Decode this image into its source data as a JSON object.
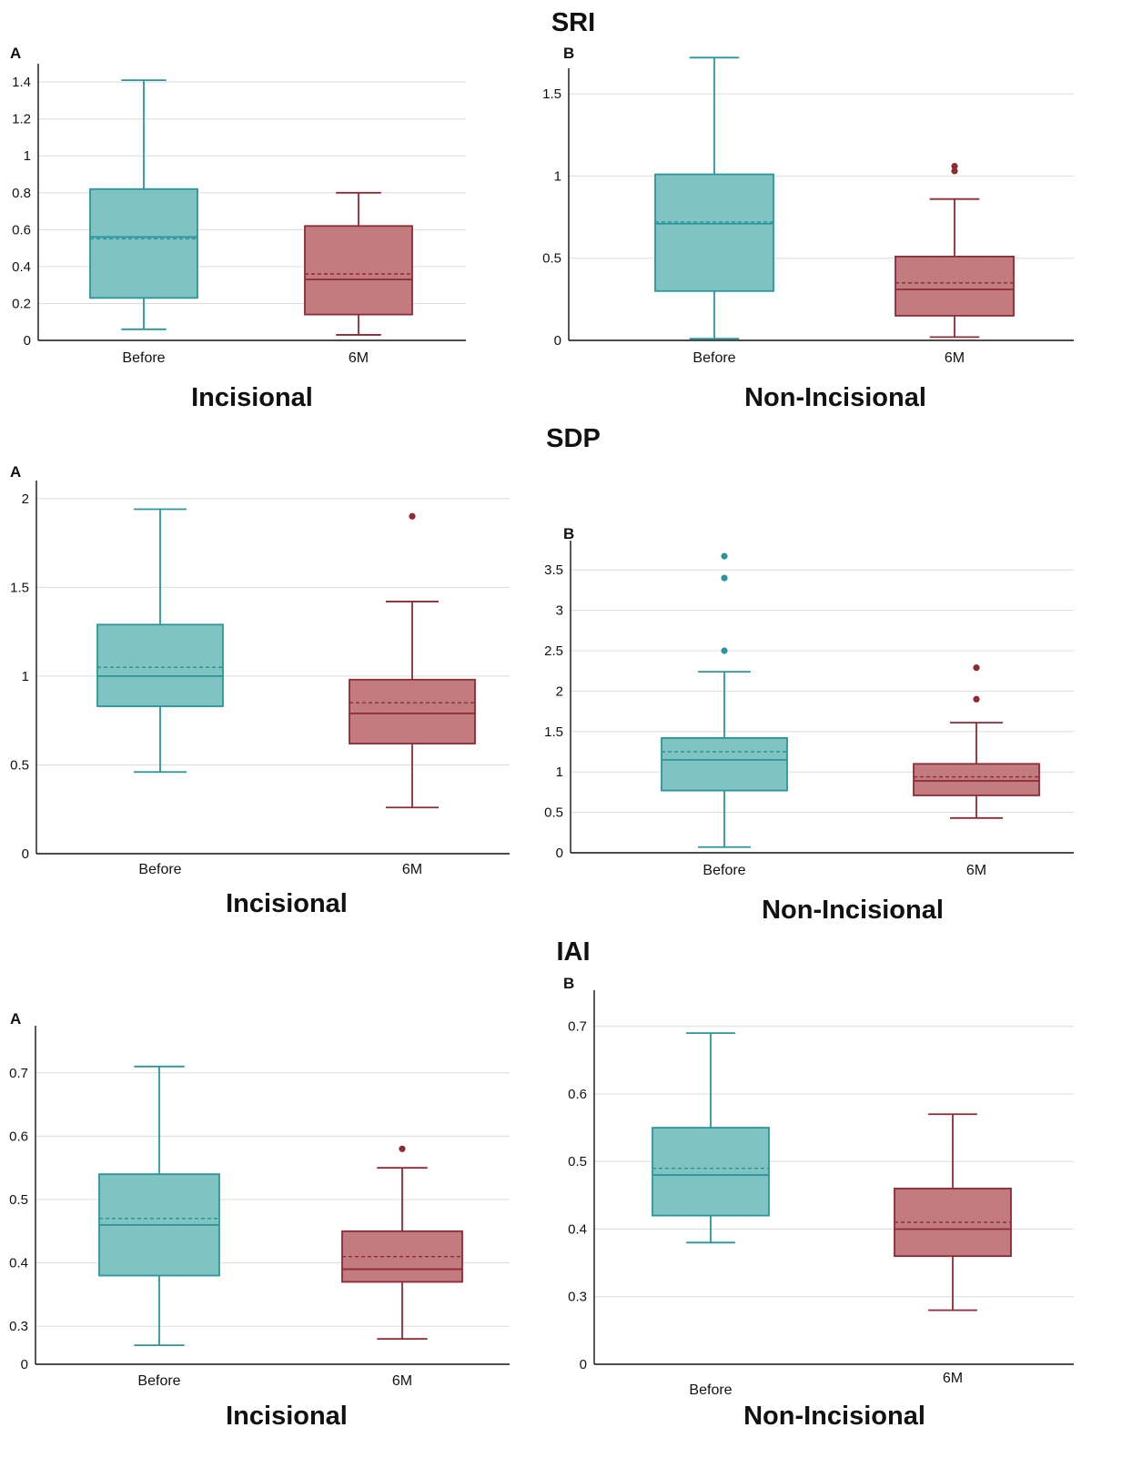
{
  "colors": {
    "before_fill": "#7fc3c3",
    "before_stroke": "#2b9599",
    "after_fill": "#c27b7f",
    "after_stroke": "#8e2a34",
    "grid": "#dcdcdc",
    "axis": "#111111"
  },
  "groups": [
    {
      "title": "SRI"
    },
    {
      "title": "SDP"
    },
    {
      "title": "IAI"
    }
  ],
  "chart_data": [
    {
      "type": "box",
      "group": "SRI",
      "panel": "A",
      "xlabel": "Incisional",
      "categories": [
        "Before",
        "6M"
      ],
      "ylim": [
        0,
        1.45
      ],
      "yticks": [
        0,
        0.2,
        0.4,
        0.6,
        0.8,
        1,
        1.2,
        1.4
      ],
      "ytick_labels": [
        "0",
        "0.2",
        "0.4",
        "0.6",
        "0.8",
        "1",
        "1.2",
        "1.4"
      ],
      "grid": true,
      "boxes": [
        {
          "category": "Before",
          "whisker_low": 0.06,
          "q1": 0.23,
          "median": 0.56,
          "mean": 0.55,
          "q3": 0.82,
          "whisker_high": 1.41,
          "outliers": []
        },
        {
          "category": "6M",
          "whisker_low": 0.03,
          "q1": 0.14,
          "median": 0.33,
          "mean": 0.36,
          "q3": 0.62,
          "whisker_high": 0.8,
          "outliers": []
        }
      ]
    },
    {
      "type": "box",
      "group": "SRI",
      "panel": "B",
      "xlabel": "Non-Incisional",
      "categories": [
        "Before",
        "6M"
      ],
      "ylim": [
        0,
        1.6
      ],
      "yticks": [
        0,
        0.5,
        1,
        1.5
      ],
      "ytick_labels": [
        "0",
        "0.5",
        "1",
        "1.5"
      ],
      "grid": true,
      "boxes": [
        {
          "category": "Before",
          "whisker_low": 0.01,
          "q1": 0.3,
          "median": 0.71,
          "mean": 0.72,
          "q3": 1.01,
          "whisker_high": 1.72,
          "outliers": []
        },
        {
          "category": "6M",
          "whisker_low": 0.02,
          "q1": 0.15,
          "median": 0.31,
          "mean": 0.35,
          "q3": 0.51,
          "whisker_high": 0.86,
          "outliers": [
            1.03,
            1.06
          ]
        }
      ]
    },
    {
      "type": "box",
      "group": "SDP",
      "panel": "A",
      "xlabel": "Incisional",
      "categories": [
        "Before",
        "6M"
      ],
      "ylim": [
        0,
        2.05
      ],
      "yticks": [
        0,
        0.5,
        1,
        1.5,
        2
      ],
      "ytick_labels": [
        "0",
        "0.5",
        "1",
        "1.5",
        "2"
      ],
      "grid": true,
      "boxes": [
        {
          "category": "Before",
          "whisker_low": 0.46,
          "q1": 0.83,
          "median": 1.0,
          "mean": 1.05,
          "q3": 1.29,
          "whisker_high": 1.94,
          "outliers": []
        },
        {
          "category": "6M",
          "whisker_low": 0.26,
          "q1": 0.62,
          "median": 0.79,
          "mean": 0.85,
          "q3": 0.98,
          "whisker_high": 1.42,
          "outliers": [
            1.9
          ]
        }
      ]
    },
    {
      "type": "box",
      "group": "SDP",
      "panel": "B",
      "xlabel": "Non-Incisional",
      "categories": [
        "Before",
        "6M"
      ],
      "ylim": [
        0,
        3.75
      ],
      "yticks": [
        0,
        0.5,
        1,
        1.5,
        2,
        2.5,
        3,
        3.5
      ],
      "ytick_labels": [
        "0",
        "0.5",
        "1",
        "1.5",
        "2",
        "2.5",
        "3",
        "3.5"
      ],
      "grid": true,
      "boxes": [
        {
          "category": "Before",
          "whisker_low": 0.07,
          "q1": 0.77,
          "median": 1.15,
          "mean": 1.25,
          "q3": 1.42,
          "whisker_high": 2.24,
          "outliers": [
            2.5,
            3.4,
            3.67
          ]
        },
        {
          "category": "6M",
          "whisker_low": 0.43,
          "q1": 0.71,
          "median": 0.89,
          "mean": 0.94,
          "q3": 1.1,
          "whisker_high": 1.61,
          "outliers": [
            1.9,
            2.29
          ]
        }
      ]
    },
    {
      "type": "box",
      "group": "IAI",
      "panel": "A",
      "xlabel": "Incisional",
      "categories": [
        "Before",
        "6M"
      ],
      "ylim": [
        0.24,
        0.76
      ],
      "axis_break": true,
      "yticks": [
        0.24,
        0.3,
        0.4,
        0.5,
        0.6,
        0.7
      ],
      "ytick_labels": [
        "0",
        "0.3",
        "0.4",
        "0.5",
        "0.6",
        "0.7"
      ],
      "grid": true,
      "boxes": [
        {
          "category": "Before",
          "whisker_low": 0.27,
          "q1": 0.38,
          "median": 0.46,
          "mean": 0.47,
          "q3": 0.54,
          "whisker_high": 0.71,
          "outliers": []
        },
        {
          "category": "6M",
          "whisker_low": 0.28,
          "q1": 0.37,
          "median": 0.39,
          "mean": 0.41,
          "q3": 0.45,
          "whisker_high": 0.55,
          "outliers": [
            0.58
          ]
        }
      ]
    },
    {
      "type": "box",
      "group": "IAI",
      "panel": "B",
      "xlabel": "Non-Incisional",
      "categories": [
        "Before",
        "6M"
      ],
      "ylim": [
        0.2,
        0.74
      ],
      "axis_break": true,
      "yticks": [
        0.2,
        0.3,
        0.4,
        0.5,
        0.6,
        0.7
      ],
      "ytick_labels": [
        "0",
        "0.3",
        "0.4",
        "0.5",
        "0.6",
        "0.7"
      ],
      "grid": true,
      "boxes": [
        {
          "category": "Before",
          "whisker_low": 0.38,
          "q1": 0.42,
          "median": 0.48,
          "mean": 0.49,
          "q3": 0.55,
          "whisker_high": 0.69,
          "outliers": []
        },
        {
          "category": "6M",
          "whisker_low": 0.28,
          "q1": 0.36,
          "median": 0.4,
          "mean": 0.41,
          "q3": 0.46,
          "whisker_high": 0.57,
          "outliers": []
        }
      ]
    }
  ]
}
